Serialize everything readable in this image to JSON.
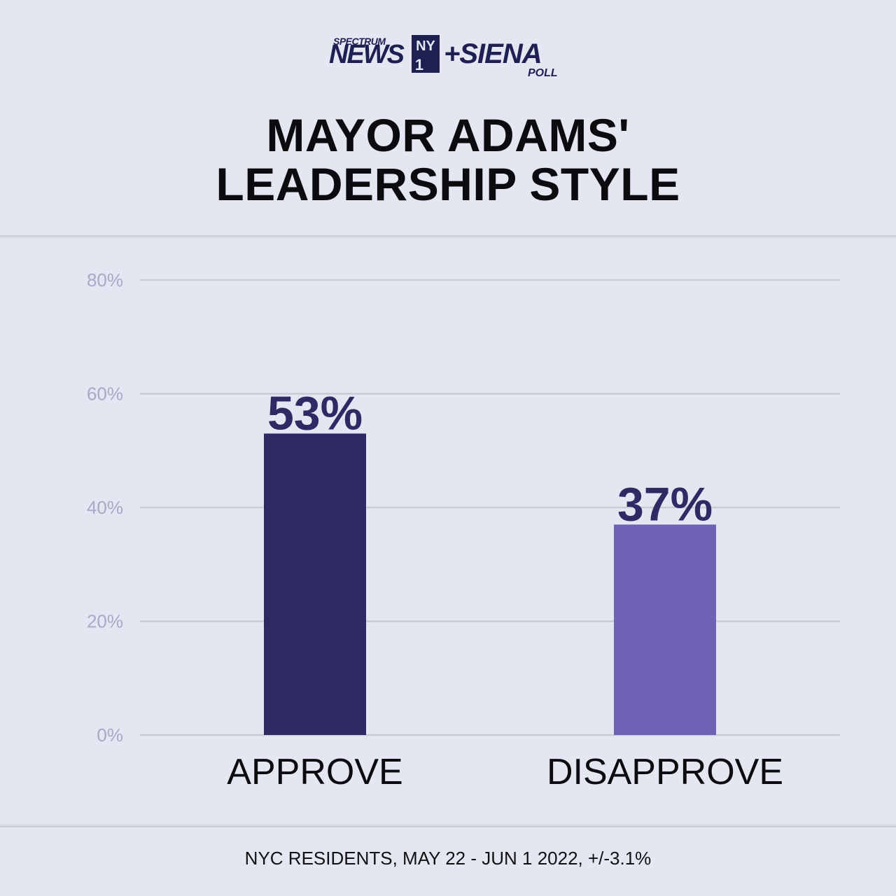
{
  "header": {
    "logo": {
      "spectrum": "SPECTRUM",
      "news": "NEWS",
      "ny": "NY",
      "one": "1",
      "siena": "+SIENA",
      "poll": "POLL"
    },
    "title_line1": "MAYOR ADAMS'",
    "title_line2": "LEADERSHIP STYLE"
  },
  "chart_data": {
    "type": "bar",
    "categories": [
      "APPROVE",
      "DISAPPROVE"
    ],
    "values": [
      53,
      37
    ],
    "value_labels": [
      "53%",
      "37%"
    ],
    "bar_colors": [
      "#2e2b64",
      "#6e62b5"
    ],
    "ylim": [
      0,
      80
    ],
    "yticks": [
      0,
      20,
      40,
      60,
      80
    ],
    "ytick_labels": [
      "0%",
      "20%",
      "40%",
      "60%",
      "80%"
    ],
    "grid": true
  },
  "footer": {
    "note": "NYC RESIDENTS, MAY 22 - JUN 1 2022, +/-3.1%"
  }
}
